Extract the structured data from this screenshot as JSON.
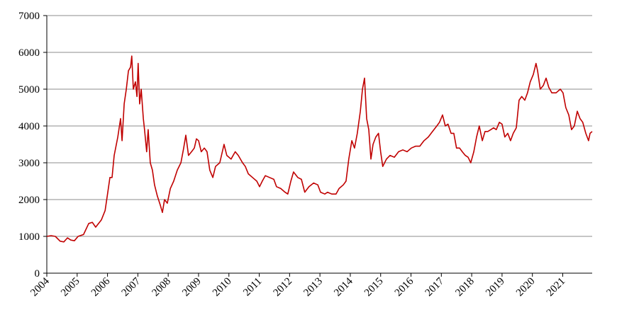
{
  "chart_data": {
    "type": "line",
    "x": [
      2004.0,
      2004.14,
      2004.28,
      2004.44,
      2004.56,
      2004.68,
      2004.79,
      2004.91,
      2005.03,
      2005.21,
      2005.38,
      2005.5,
      2005.61,
      2005.8,
      2005.92,
      2006.01,
      2006.08,
      2006.15,
      2006.22,
      2006.34,
      2006.43,
      2006.48,
      2006.55,
      2006.62,
      2006.69,
      2006.76,
      2006.8,
      2006.85,
      2006.92,
      2006.97,
      2007.01,
      2007.06,
      2007.11,
      2007.18,
      2007.22,
      2007.29,
      2007.34,
      2007.41,
      2007.48,
      2007.55,
      2007.64,
      2007.74,
      2007.81,
      2007.88,
      2007.97,
      2008.07,
      2008.18,
      2008.3,
      2008.42,
      2008.51,
      2008.58,
      2008.67,
      2008.77,
      2008.86,
      2008.93,
      2009.0,
      2009.09,
      2009.19,
      2009.28,
      2009.37,
      2009.47,
      2009.56,
      2009.7,
      2009.84,
      2009.93,
      2010.07,
      2010.21,
      2010.31,
      2010.45,
      2010.54,
      2010.64,
      2010.78,
      2010.92,
      2011.01,
      2011.1,
      2011.2,
      2011.34,
      2011.48,
      2011.57,
      2011.71,
      2011.85,
      2011.94,
      2012.04,
      2012.13,
      2012.27,
      2012.39,
      2012.5,
      2012.64,
      2012.79,
      2012.93,
      2013.02,
      2013.16,
      2013.25,
      2013.39,
      2013.53,
      2013.63,
      2013.77,
      2013.86,
      2013.95,
      2014.05,
      2014.14,
      2014.23,
      2014.33,
      2014.4,
      2014.47,
      2014.54,
      2014.61,
      2014.68,
      2014.75,
      2014.84,
      2014.93,
      2015.0,
      2015.07,
      2015.19,
      2015.31,
      2015.45,
      2015.59,
      2015.73,
      2015.87,
      2016.01,
      2016.15,
      2016.29,
      2016.43,
      2016.57,
      2016.71,
      2016.85,
      2016.94,
      2017.04,
      2017.13,
      2017.22,
      2017.32,
      2017.41,
      2017.5,
      2017.6,
      2017.69,
      2017.79,
      2017.88,
      2017.97,
      2018.07,
      2018.16,
      2018.25,
      2018.35,
      2018.44,
      2018.53,
      2018.63,
      2018.72,
      2018.81,
      2018.91,
      2019.0,
      2019.09,
      2019.19,
      2019.28,
      2019.37,
      2019.47,
      2019.56,
      2019.65,
      2019.75,
      2019.84,
      2019.93,
      2020.03,
      2020.12,
      2020.17,
      2020.26,
      2020.36,
      2020.45,
      2020.54,
      2020.64,
      2020.78,
      2020.92,
      2021.01,
      2021.1,
      2021.2,
      2021.29,
      2021.38,
      2021.48,
      2021.57,
      2021.66,
      2021.76,
      2021.85,
      2021.9,
      2021.97
    ],
    "series": [
      {
        "color": "#c00000",
        "values": [
          1000,
          1020,
          1000,
          870,
          850,
          960,
          900,
          880,
          1000,
          1050,
          1350,
          1380,
          1250,
          1450,
          1700,
          2200,
          2600,
          2600,
          3200,
          3700,
          4200,
          3600,
          4600,
          5000,
          5500,
          5600,
          5900,
          5000,
          5200,
          4800,
          5700,
          4600,
          5000,
          4200,
          3900,
          3300,
          3900,
          3000,
          2800,
          2400,
          2100,
          1850,
          1650,
          2000,
          1900,
          2300,
          2500,
          2800,
          3000,
          3400,
          3750,
          3200,
          3300,
          3400,
          3650,
          3600,
          3300,
          3400,
          3300,
          2800,
          2600,
          2900,
          3000,
          3500,
          3200,
          3100,
          3300,
          3200,
          3000,
          2900,
          2700,
          2600,
          2500,
          2350,
          2500,
          2650,
          2600,
          2550,
          2350,
          2300,
          2200,
          2150,
          2500,
          2750,
          2600,
          2550,
          2200,
          2350,
          2450,
          2400,
          2200,
          2150,
          2200,
          2150,
          2150,
          2300,
          2400,
          2500,
          3100,
          3600,
          3400,
          3800,
          4400,
          5000,
          5300,
          4200,
          3900,
          3100,
          3500,
          3700,
          3800,
          3300,
          2900,
          3100,
          3200,
          3150,
          3300,
          3350,
          3300,
          3400,
          3450,
          3450,
          3600,
          3700,
          3850,
          4000,
          4100,
          4300,
          4000,
          4050,
          3800,
          3800,
          3400,
          3400,
          3300,
          3200,
          3150,
          3000,
          3300,
          3700,
          4000,
          3600,
          3850,
          3850,
          3900,
          3950,
          3900,
          4100,
          4050,
          3700,
          3800,
          3600,
          3800,
          3950,
          4700,
          4800,
          4700,
          4900,
          5200,
          5400,
          5700,
          5500,
          5000,
          5100,
          5300,
          5050,
          4900,
          4900,
          5000,
          4900,
          4500,
          4300,
          3900,
          4000,
          4400,
          4200,
          4100,
          3800,
          3600,
          3800,
          3850
        ]
      }
    ],
    "xlim": [
      2004,
      2021.97
    ],
    "xticks": [
      2004,
      2005,
      2006,
      2007,
      2008,
      2009,
      2010,
      2011,
      2012,
      2013,
      2014,
      2015,
      2016,
      2017,
      2018,
      2019,
      2020,
      2021
    ],
    "ylim": [
      0,
      7000
    ],
    "yticks": [
      0,
      1000,
      2000,
      3000,
      4000,
      5000,
      6000,
      7000
    ],
    "grid": true
  }
}
